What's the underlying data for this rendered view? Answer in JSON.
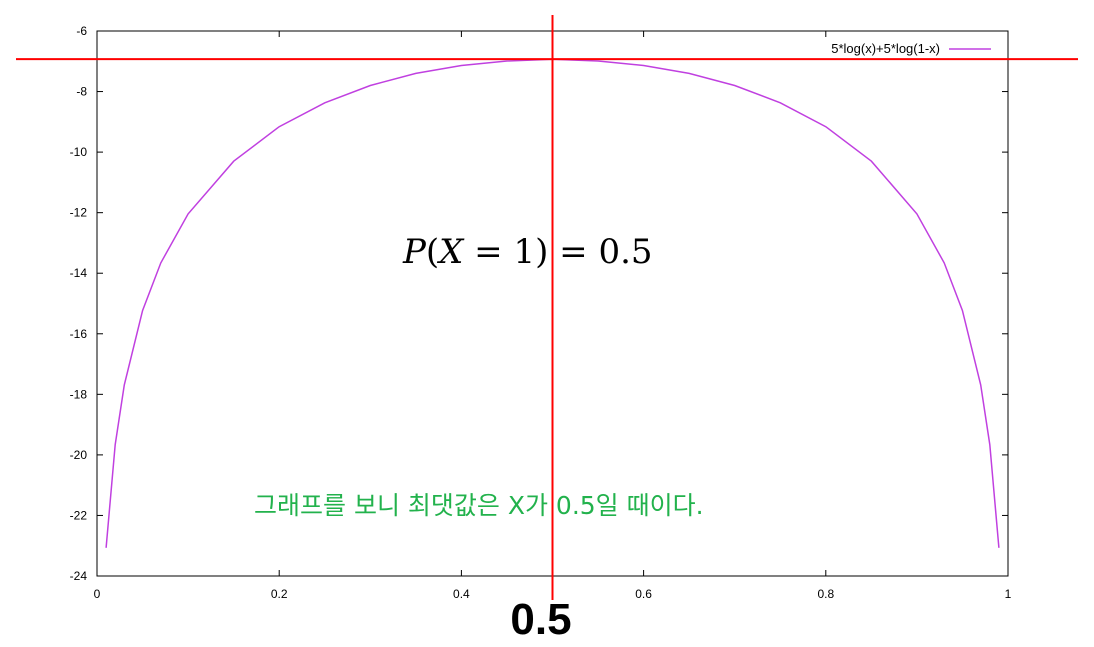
{
  "chart_data": {
    "type": "line",
    "title": "",
    "xlabel": "",
    "ylabel": "",
    "xlim": [
      0,
      1
    ],
    "ylim": [
      -24,
      -6
    ],
    "x_ticks": [
      "0",
      "0.2",
      "0.4",
      "0.6",
      "0.8",
      "1"
    ],
    "y_ticks": [
      "-6",
      "-8",
      "-10",
      "-12",
      "-14",
      "-16",
      "-18",
      "-20",
      "-22",
      "-24"
    ],
    "grid": false,
    "legend_position": "top-right",
    "series": [
      {
        "name": "5*log(x)+5*log(1-x)",
        "color": "#c040e0",
        "x": [
          0.01,
          0.02,
          0.03,
          0.05,
          0.07,
          0.1,
          0.15,
          0.2,
          0.25,
          0.3,
          0.35,
          0.4,
          0.45,
          0.5,
          0.55,
          0.6,
          0.65,
          0.7,
          0.75,
          0.8,
          0.85,
          0.9,
          0.93,
          0.95,
          0.97,
          0.98,
          0.99
        ],
        "y": [
          -23.07,
          -19.66,
          -17.69,
          -15.23,
          -13.66,
          -12.04,
          -10.3,
          -9.16,
          -8.37,
          -7.8,
          -7.4,
          -7.14,
          -6.99,
          -6.93,
          -6.99,
          -7.14,
          -7.4,
          -7.8,
          -8.37,
          -9.16,
          -10.3,
          -12.04,
          -13.66,
          -15.23,
          -17.69,
          -19.66,
          -23.07
        ]
      }
    ],
    "annotations": {
      "vertical_line_x": 0.5,
      "horizontal_line_y": -6.93,
      "line_color": "#ff0000",
      "marker_label": "0.5",
      "formula": {
        "italic_p": "P",
        "open": "(",
        "italic_x": "X",
        "rest": " = 1) = 0.5"
      },
      "note": "그래프를 보니 최댓값은 X가 0.5일 때이다.",
      "note_color": "#22b24c"
    }
  }
}
